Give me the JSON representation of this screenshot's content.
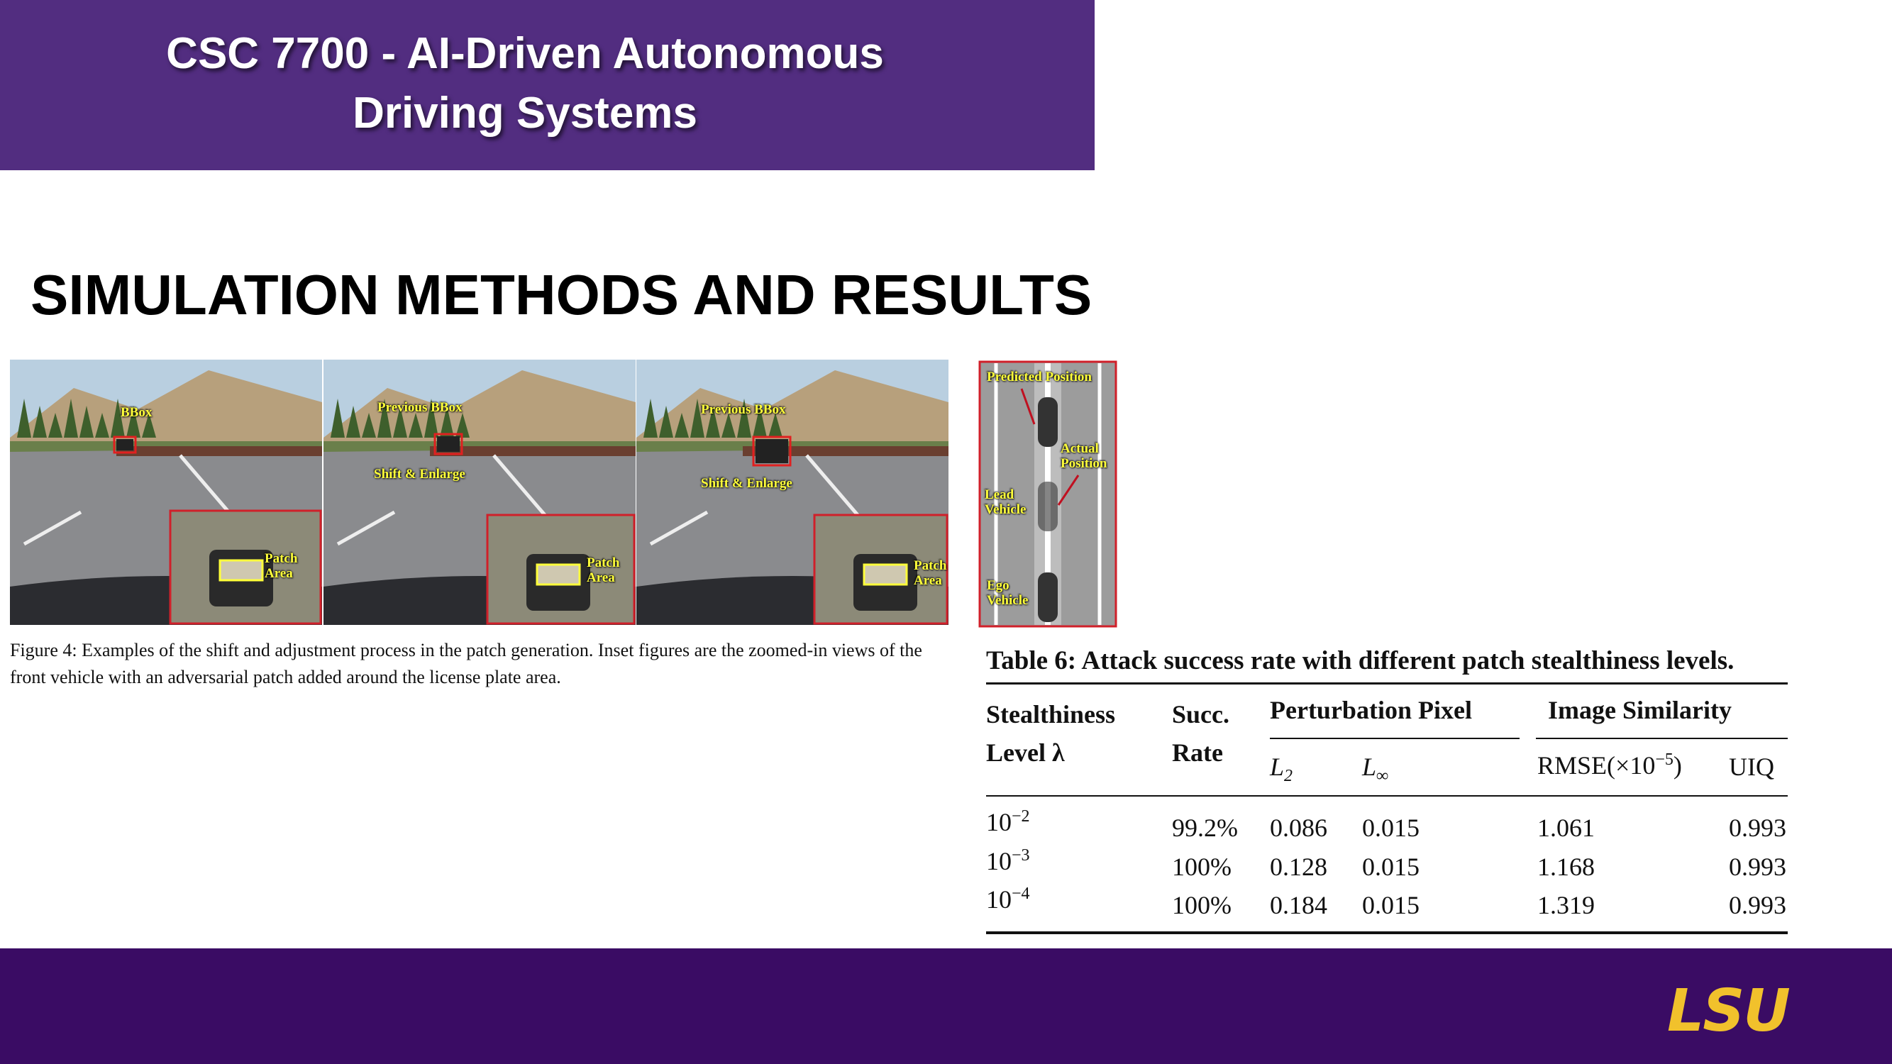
{
  "header": {
    "title_lines": [
      "CSC 7700 - AI-Driven Autonomous",
      "Driving Systems"
    ]
  },
  "heading": "SIMULATION METHODS AND RESULTS",
  "figure": {
    "panels": [
      {
        "labels": [
          "BBox",
          "Patch Area"
        ]
      },
      {
        "labels": [
          "Previous BBox",
          "Shift & Enlarge",
          "Patch Area"
        ]
      },
      {
        "labels": [
          "Previous BBox",
          "Shift & Enlarge",
          "Patch Area"
        ]
      }
    ],
    "caption": "Figure 4: Examples of the shift and adjustment process in the patch generation. Inset figures are the zoomed-in views of the front vehicle with an adversarial patch added around the license plate area."
  },
  "diagram": {
    "labels": [
      "Predicted Position",
      "Actual Position",
      "Lead Vehicle",
      "Ego Vehicle"
    ]
  },
  "table": {
    "caption": "Table 6: Attack success rate with different patch stealthiness levels.",
    "headers": {
      "level": "Stealthiness Level λ",
      "rate": "Succ. Rate",
      "perturbation": "Perturbation Pixel",
      "similarity": "Image Similarity",
      "l2": {
        "base": "L",
        "sub": "2"
      },
      "linf": {
        "base": "L",
        "sub": "∞"
      },
      "rmse": {
        "before": "RMSE(×10",
        "sup": "−5",
        "after": ")"
      },
      "uiq": "UIQ"
    },
    "rows": [
      {
        "level": {
          "base": "10",
          "exp": "−2"
        },
        "cells": [
          "99.2%",
          "0.086",
          "0.015",
          "1.061",
          "0.993"
        ]
      },
      {
        "level": {
          "base": "10",
          "exp": "−3"
        },
        "cells": [
          "100%",
          "0.128",
          "0.015",
          "1.168",
          "0.993"
        ]
      },
      {
        "level": {
          "base": "10",
          "exp": "−4"
        },
        "cells": [
          "100%",
          "0.184",
          "0.015",
          "1.319",
          "0.993"
        ]
      }
    ]
  },
  "footer": {
    "logo": "LSU"
  }
}
